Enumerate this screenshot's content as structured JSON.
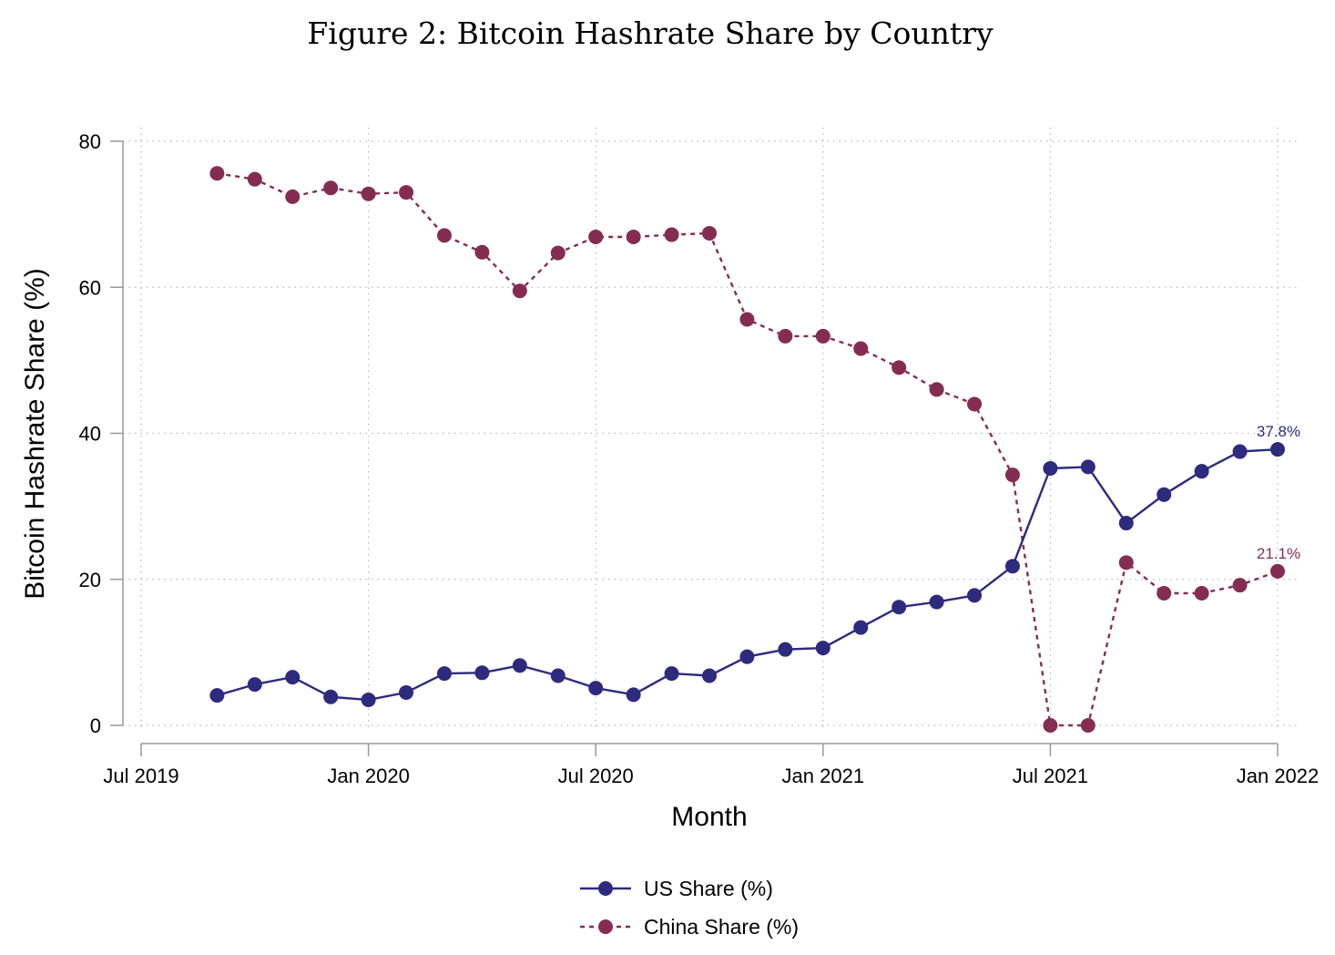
{
  "chart_data": {
    "type": "line",
    "title": "Figure 2: Bitcoin Hashrate Share by Country",
    "xlabel": "Month",
    "ylabel": "Bitcoin Hashrate Share (%)",
    "xlim": [
      2019.5,
      2022.0
    ],
    "ylim": [
      0,
      80
    ],
    "x_ticks": [
      {
        "value": 2019.5,
        "label": "Jul 2019"
      },
      {
        "value": 2020.0,
        "label": "Jan 2020"
      },
      {
        "value": 2020.5,
        "label": "Jul 2020"
      },
      {
        "value": 2021.0,
        "label": "Jan 2021"
      },
      {
        "value": 2021.5,
        "label": "Jul 2021"
      },
      {
        "value": 2022.0,
        "label": "Jan 2022"
      }
    ],
    "y_ticks": [
      {
        "value": 0,
        "label": "0"
      },
      {
        "value": 20,
        "label": "20"
      },
      {
        "value": 40,
        "label": "40"
      },
      {
        "value": 60,
        "label": "60"
      },
      {
        "value": 80,
        "label": "80"
      }
    ],
    "grid": true,
    "legend_position": "bottom",
    "x": [
      2019.667,
      2019.75,
      2019.833,
      2019.917,
      2020.0,
      2020.083,
      2020.167,
      2020.25,
      2020.333,
      2020.417,
      2020.5,
      2020.583,
      2020.667,
      2020.75,
      2020.833,
      2020.917,
      2021.0,
      2021.083,
      2021.167,
      2021.25,
      2021.333,
      2021.417,
      2021.5,
      2021.583,
      2021.667,
      2021.75,
      2021.833,
      2021.917,
      2022.0
    ],
    "series": [
      {
        "name": "US Share (%)",
        "color": "#2e2a7e",
        "line_style": "solid",
        "values": [
          4.1,
          5.6,
          6.6,
          3.9,
          3.5,
          4.5,
          7.1,
          7.2,
          8.2,
          6.8,
          5.1,
          4.2,
          7.1,
          6.8,
          9.4,
          10.4,
          10.6,
          13.4,
          16.2,
          16.9,
          17.8,
          21.8,
          35.2,
          35.4,
          27.7,
          31.6,
          34.8,
          37.5,
          37.8
        ],
        "end_label": "37.8%"
      },
      {
        "name": "China Share (%)",
        "color": "#852c52",
        "line_style": "dashed",
        "values": [
          75.6,
          74.8,
          72.4,
          73.6,
          72.8,
          73.0,
          67.1,
          64.8,
          59.5,
          64.7,
          66.9,
          66.9,
          67.2,
          67.4,
          55.6,
          53.3,
          53.3,
          51.6,
          49.0,
          46.0,
          44.0,
          34.3,
          0.0,
          0.0,
          22.3,
          18.1,
          18.1,
          19.2,
          21.1
        ],
        "end_label": "21.1%"
      }
    ]
  }
}
